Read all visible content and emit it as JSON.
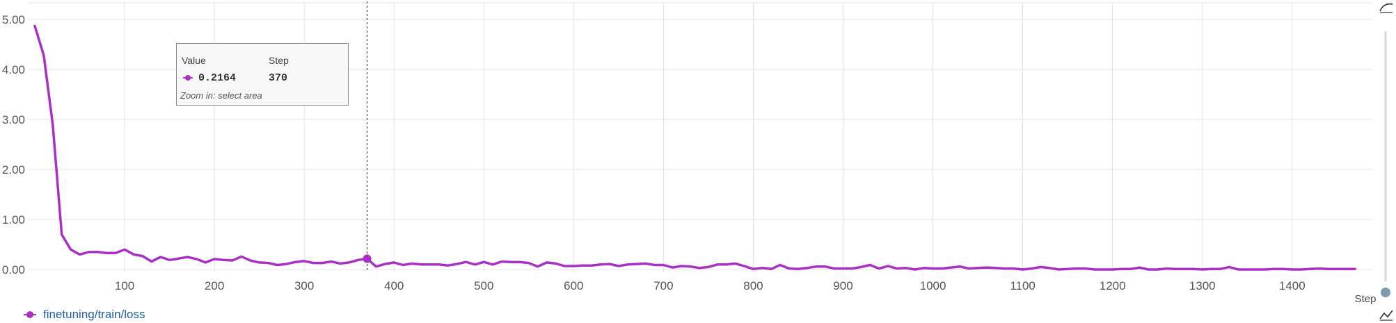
{
  "chart_data": {
    "type": "line",
    "xlabel": "Step",
    "ylabel": "",
    "xlim": [
      0,
      1480
    ],
    "ylim": [
      0,
      5.25
    ],
    "x_ticks": [
      "100",
      "200",
      "300",
      "400",
      "500",
      "600",
      "700",
      "800",
      "900",
      "1000",
      "1100",
      "1200",
      "1300",
      "1400"
    ],
    "y_ticks": [
      "0.00",
      "1.00",
      "2.00",
      "3.00",
      "4.00",
      "5.00"
    ],
    "grid": true,
    "legend_position": "bottom-left",
    "series": [
      {
        "name": "finetuning/train/loss",
        "color": "#aa2fc4",
        "x": [
          0,
          10,
          20,
          30,
          40,
          50,
          60,
          70,
          80,
          90,
          100,
          110,
          120,
          130,
          140,
          150,
          160,
          170,
          180,
          190,
          200,
          210,
          220,
          230,
          240,
          250,
          260,
          270,
          280,
          290,
          300,
          310,
          320,
          330,
          340,
          350,
          360,
          370,
          380,
          390,
          400,
          410,
          420,
          430,
          440,
          450,
          460,
          470,
          480,
          490,
          500,
          510,
          520,
          530,
          540,
          550,
          560,
          570,
          580,
          590,
          600,
          610,
          620,
          630,
          640,
          650,
          660,
          670,
          680,
          690,
          700,
          710,
          720,
          730,
          740,
          750,
          760,
          770,
          780,
          790,
          800,
          810,
          820,
          830,
          840,
          850,
          860,
          870,
          880,
          890,
          900,
          910,
          920,
          930,
          940,
          950,
          960,
          970,
          980,
          990,
          1000,
          1010,
          1020,
          1030,
          1040,
          1050,
          1060,
          1070,
          1080,
          1090,
          1100,
          1110,
          1120,
          1130,
          1140,
          1150,
          1160,
          1170,
          1180,
          1190,
          1200,
          1210,
          1220,
          1230,
          1240,
          1250,
          1260,
          1270,
          1280,
          1290,
          1300,
          1310,
          1320,
          1330,
          1340,
          1350,
          1360,
          1370,
          1380,
          1390,
          1400,
          1410,
          1420,
          1430,
          1440,
          1450,
          1460,
          1470
        ],
        "y": [
          4.87,
          4.28,
          2.9,
          0.7,
          0.4,
          0.3,
          0.35,
          0.35,
          0.33,
          0.33,
          0.4,
          0.3,
          0.27,
          0.16,
          0.25,
          0.19,
          0.22,
          0.25,
          0.21,
          0.14,
          0.21,
          0.19,
          0.18,
          0.26,
          0.18,
          0.14,
          0.13,
          0.09,
          0.11,
          0.15,
          0.17,
          0.13,
          0.13,
          0.16,
          0.12,
          0.14,
          0.19,
          0.2164,
          0.06,
          0.11,
          0.14,
          0.09,
          0.12,
          0.1,
          0.1,
          0.1,
          0.08,
          0.11,
          0.15,
          0.1,
          0.15,
          0.1,
          0.16,
          0.15,
          0.15,
          0.13,
          0.06,
          0.14,
          0.12,
          0.07,
          0.07,
          0.08,
          0.08,
          0.1,
          0.11,
          0.07,
          0.1,
          0.11,
          0.12,
          0.09,
          0.09,
          0.04,
          0.07,
          0.06,
          0.03,
          0.05,
          0.1,
          0.1,
          0.12,
          0.07,
          0.01,
          0.03,
          0.01,
          0.09,
          0.02,
          0.01,
          0.03,
          0.06,
          0.06,
          0.02,
          0.02,
          0.02,
          0.05,
          0.09,
          0.02,
          0.07,
          0.02,
          0.03,
          0.0,
          0.03,
          0.02,
          0.02,
          0.04,
          0.06,
          0.02,
          0.03,
          0.04,
          0.03,
          0.02,
          0.02,
          0.0,
          0.02,
          0.05,
          0.03,
          0.0,
          0.01,
          0.02,
          0.02,
          0.0,
          0.0,
          0.0,
          0.01,
          0.01,
          0.04,
          0.0,
          0.0,
          0.02,
          0.01,
          0.01,
          0.01,
          0.0,
          0.01,
          0.01,
          0.05,
          0.0,
          0.0,
          0.0,
          0.0,
          0.01,
          0.01,
          0.0,
          0.0,
          0.01,
          0.02,
          0.01,
          0.01,
          0.01,
          0.01
        ]
      }
    ]
  },
  "tooltip": {
    "value_header": "Value",
    "step_header": "Step",
    "value": "0.2164",
    "step": "370",
    "hint": "Zoom in: select area"
  },
  "hover_step": 370,
  "hover_value": 0.2164,
  "icons": [
    "zoom-curve-icon",
    "scrollbar-handle-icon",
    "chart-toggle-icon"
  ]
}
